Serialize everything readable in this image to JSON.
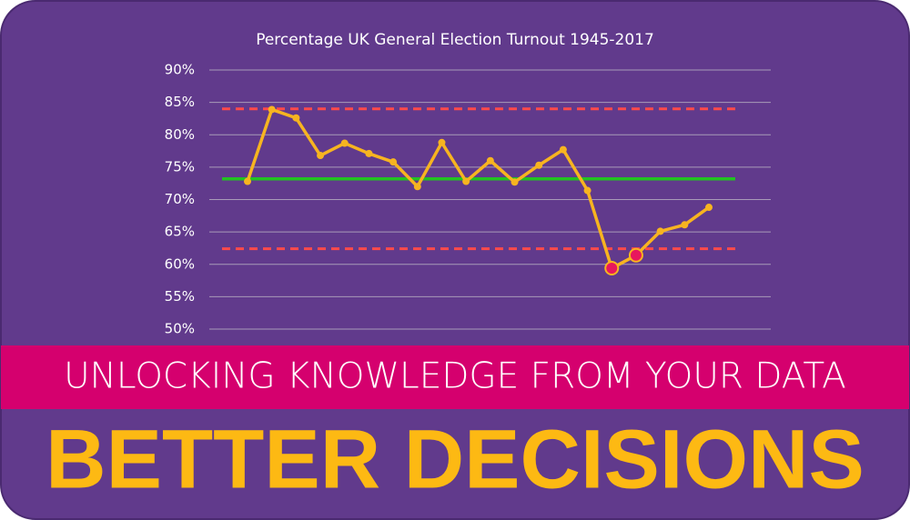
{
  "chart_data": {
    "type": "line",
    "title": "Percentage UK General Election Turnout 1945-2017",
    "values": [
      72.8,
      83.9,
      82.6,
      76.8,
      78.7,
      77.1,
      75.8,
      72.0,
      78.8,
      72.8,
      76.0,
      72.7,
      75.3,
      77.7,
      71.4,
      59.4,
      61.4,
      65.1,
      66.1,
      68.8
    ],
    "color": "#f7b420",
    "highlight_color": "#e8175d",
    "ylim": [
      50,
      90
    ],
    "yticks": [
      {
        "value": 50,
        "label": "50%"
      },
      {
        "value": 55,
        "label": "55%"
      },
      {
        "value": 60,
        "label": "60%"
      },
      {
        "value": 65,
        "label": "65%"
      },
      {
        "value": 70,
        "label": "70%"
      },
      {
        "value": 75,
        "label": "75%"
      },
      {
        "value": 80,
        "label": "80%"
      },
      {
        "value": 85,
        "label": "85%"
      },
      {
        "value": 90,
        "label": "90%"
      }
    ],
    "grid": true,
    "mean_line": {
      "value": 73.2,
      "color": "#22c322"
    },
    "control_limits": {
      "values": [
        84.0,
        62.4
      ],
      "color": "#ff4a4a"
    }
  },
  "banner": {
    "tagline": "UNLOCKING KNOWLEDGE FROM YOUR DATA",
    "headline": "BETTER DECISIONS"
  }
}
